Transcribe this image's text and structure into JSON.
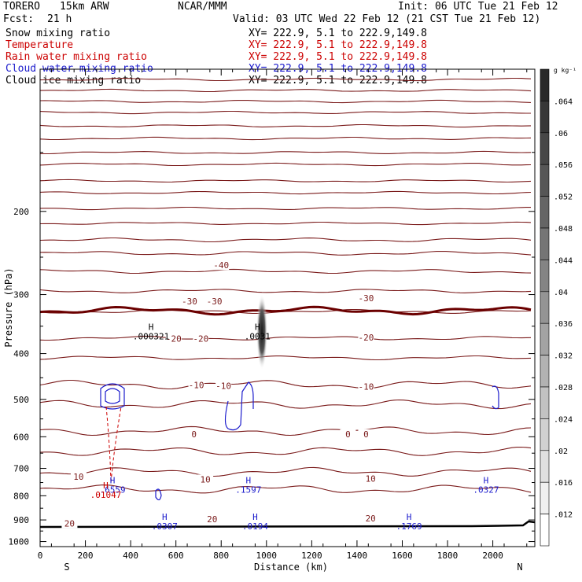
{
  "header": {
    "model": "TORERO",
    "resolution": "15km ARW",
    "org": "NCAR/MMM",
    "init": "Init: 06 UTC Tue 21 Feb 12",
    "fcst_label": "Fcst:",
    "fcst_value": "21 h",
    "valid": "Valid: 03 UTC Wed 22 Feb 12 (21 CST Tue 21 Feb 12)"
  },
  "fields": [
    {
      "name": "Snow mixing ratio",
      "xy": "XY= 222.9, 5.1 to 222.9,149.8",
      "color": "#000000"
    },
    {
      "name": "Temperature",
      "xy": "XY= 222.9, 5.1 to 222.9,149.8",
      "color": "#cc0000"
    },
    {
      "name": "Rain water mixing ratio",
      "xy": "XY= 222.9, 5.1 to 222.9,149.8",
      "color": "#cc0000"
    },
    {
      "name": "Cloud water mixing ratio",
      "xy": "XY= 222.9, 5.1 to 222.9,149.8",
      "color": "#1a1acc"
    },
    {
      "name": "Cloud ice mixing ratio",
      "xy": "XY= 222.9, 5.1 to 222.9,149.8",
      "color": "#000000"
    }
  ],
  "chart_data": {
    "type": "cross-section contour",
    "xlabel": "Distance (km)",
    "ylabel": "Pressure (hPa)",
    "x_ticks": [
      0,
      200,
      400,
      600,
      800,
      1000,
      1200,
      1400,
      1600,
      1800,
      2000
    ],
    "y_ticks": [
      200,
      300,
      400,
      500,
      600,
      700,
      800,
      900,
      1000
    ],
    "xlim": [
      0,
      2180
    ],
    "ylim": [
      100,
      1025
    ],
    "y_scale": "log",
    "end_left": "S",
    "end_right": "N",
    "temperature_labels": [
      {
        "text": "-40",
        "x": 800,
        "p": 260
      },
      {
        "text": "-30",
        "x": 660,
        "p": 310
      },
      {
        "text": "-30",
        "x": 770,
        "p": 310
      },
      {
        "text": "-30",
        "x": 1440,
        "p": 305
      },
      {
        "text": "-20",
        "x": 590,
        "p": 372
      },
      {
        "text": "-20",
        "x": 710,
        "p": 372
      },
      {
        "text": "-20",
        "x": 1440,
        "p": 370
      },
      {
        "text": "-10",
        "x": 690,
        "p": 466
      },
      {
        "text": "-10",
        "x": 810,
        "p": 468
      },
      {
        "text": "-10",
        "x": 1440,
        "p": 470
      },
      {
        "text": "0",
        "x": 680,
        "p": 592
      },
      {
        "text": "0",
        "x": 1360,
        "p": 592
      },
      {
        "text": "0",
        "x": 1440,
        "p": 592
      },
      {
        "text": "10",
        "x": 170,
        "p": 728
      },
      {
        "text": "10",
        "x": 730,
        "p": 738
      },
      {
        "text": "10",
        "x": 1460,
        "p": 736
      },
      {
        "text": "20",
        "x": 130,
        "p": 915
      },
      {
        "text": "20",
        "x": 760,
        "p": 896
      },
      {
        "text": "20",
        "x": 1460,
        "p": 893
      }
    ],
    "maxima": [
      {
        "label": "H",
        "value": ".000321",
        "x": 490,
        "p": 365,
        "field": "snow"
      },
      {
        "label": "H",
        "value": ".0031",
        "x": 960,
        "p": 365,
        "field": "cloud ice"
      },
      {
        "label": "H",
        "value": ".6559",
        "x": 320,
        "p": 770,
        "field": "cloud water"
      },
      {
        "label": "H",
        "value": ".01047",
        "x": 290,
        "p": 790,
        "field": "rain water"
      },
      {
        "label": "H",
        "value": ".1597",
        "x": 920,
        "p": 770,
        "field": "cloud water"
      },
      {
        "label": "H",
        "value": ".0327",
        "x": 1970,
        "p": 770,
        "field": "cloud water"
      },
      {
        "label": "H",
        "value": ".0307",
        "x": 550,
        "p": 920,
        "field": "cloud water"
      },
      {
        "label": "H",
        "value": ".0194",
        "x": 950,
        "p": 920,
        "field": "cloud water"
      },
      {
        "label": "H",
        "value": ".1769",
        "x": 1630,
        "p": 920,
        "field": "cloud water"
      }
    ],
    "colorbar": {
      "units": "g kg⁻¹",
      "labels": [
        ".064",
        ".06",
        ".056",
        ".052",
        ".048",
        ".044",
        ".04",
        ".036",
        ".032",
        ".028",
        ".024",
        ".02",
        ".016",
        ".012"
      ]
    }
  }
}
